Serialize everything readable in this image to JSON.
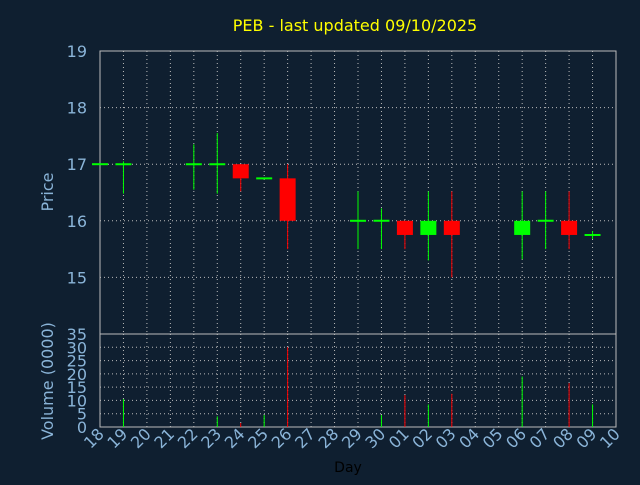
{
  "title": "PEB - last updated 09/10/2025",
  "colors": {
    "background": "#0f1f30",
    "title": "#ffff00",
    "axis_text": "#8ab4d8",
    "up": "#00ff00",
    "down": "#ff0000",
    "grid": "#bbbbbb",
    "frame": "#bbbbbb"
  },
  "chart_data": [
    {
      "type": "candlestick",
      "title": "PEB - last updated 09/10/2025",
      "ylabel": "Price",
      "ylim": [
        14.0,
        19.0
      ],
      "yticks": [
        15,
        16,
        17,
        18,
        19
      ],
      "x_tick_labels": [
        "18",
        "19",
        "20",
        "21",
        "22",
        "23",
        "24",
        "25",
        "26",
        "27",
        "28",
        "29",
        "30",
        "01",
        "02",
        "03",
        "04",
        "05",
        "06",
        "07",
        "08",
        "09",
        "10"
      ],
      "candles": [
        {
          "day": "18",
          "open": 17.0,
          "high": 17.0,
          "low": 17.0,
          "close": 17.0
        },
        {
          "day": "19",
          "open": 17.0,
          "high": 17.05,
          "low": 16.48,
          "close": 17.0
        },
        {
          "day": "22",
          "open": 17.0,
          "high": 17.35,
          "low": 16.55,
          "close": 17.0
        },
        {
          "day": "23",
          "open": 17.0,
          "high": 17.55,
          "low": 16.48,
          "close": 17.0
        },
        {
          "day": "24",
          "open": 17.0,
          "high": 17.0,
          "low": 16.52,
          "close": 16.75
        },
        {
          "day": "25",
          "open": 16.75,
          "high": 16.75,
          "low": 16.75,
          "close": 16.75
        },
        {
          "day": "26",
          "open": 16.75,
          "high": 17.0,
          "low": 15.5,
          "close": 16.0
        },
        {
          "day": "29",
          "open": 16.0,
          "high": 16.52,
          "low": 15.5,
          "close": 16.0
        },
        {
          "day": "30",
          "open": 16.0,
          "high": 16.22,
          "low": 15.5,
          "close": 16.0
        },
        {
          "day": "01",
          "open": 16.0,
          "high": 16.0,
          "low": 15.5,
          "close": 15.75
        },
        {
          "day": "02",
          "open": 15.75,
          "high": 16.52,
          "low": 15.3,
          "close": 16.0
        },
        {
          "day": "03",
          "open": 16.0,
          "high": 16.52,
          "low": 15.0,
          "close": 15.75
        },
        {
          "day": "06",
          "open": 15.75,
          "high": 16.52,
          "low": 15.32,
          "close": 16.0
        },
        {
          "day": "07",
          "open": 16.0,
          "high": 16.52,
          "low": 15.5,
          "close": 16.0
        },
        {
          "day": "08",
          "open": 16.0,
          "high": 16.52,
          "low": 15.5,
          "close": 15.75
        },
        {
          "day": "09",
          "open": 15.75,
          "high": 15.82,
          "low": 15.68,
          "close": 15.75
        }
      ]
    },
    {
      "type": "bar",
      "xlabel": "Day",
      "ylabel": "Volume (0000)",
      "ylim": [
        0,
        35
      ],
      "yticks": [
        0,
        5,
        10,
        15,
        20,
        25,
        30,
        35
      ],
      "bars": [
        {
          "day": "19",
          "value": 10.5,
          "direction": "up"
        },
        {
          "day": "23",
          "value": 4.0,
          "direction": "up"
        },
        {
          "day": "24",
          "value": 1.5,
          "direction": "down"
        },
        {
          "day": "25",
          "value": 4.5,
          "direction": "up"
        },
        {
          "day": "26",
          "value": 30.0,
          "direction": "down"
        },
        {
          "day": "30",
          "value": 4.5,
          "direction": "up"
        },
        {
          "day": "01",
          "value": 12.0,
          "direction": "down"
        },
        {
          "day": "02",
          "value": 8.5,
          "direction": "up"
        },
        {
          "day": "03",
          "value": 12.5,
          "direction": "down"
        },
        {
          "day": "06",
          "value": 19.0,
          "direction": "up"
        },
        {
          "day": "08",
          "value": 16.5,
          "direction": "down"
        },
        {
          "day": "09",
          "value": 8.5,
          "direction": "up"
        }
      ]
    }
  ]
}
